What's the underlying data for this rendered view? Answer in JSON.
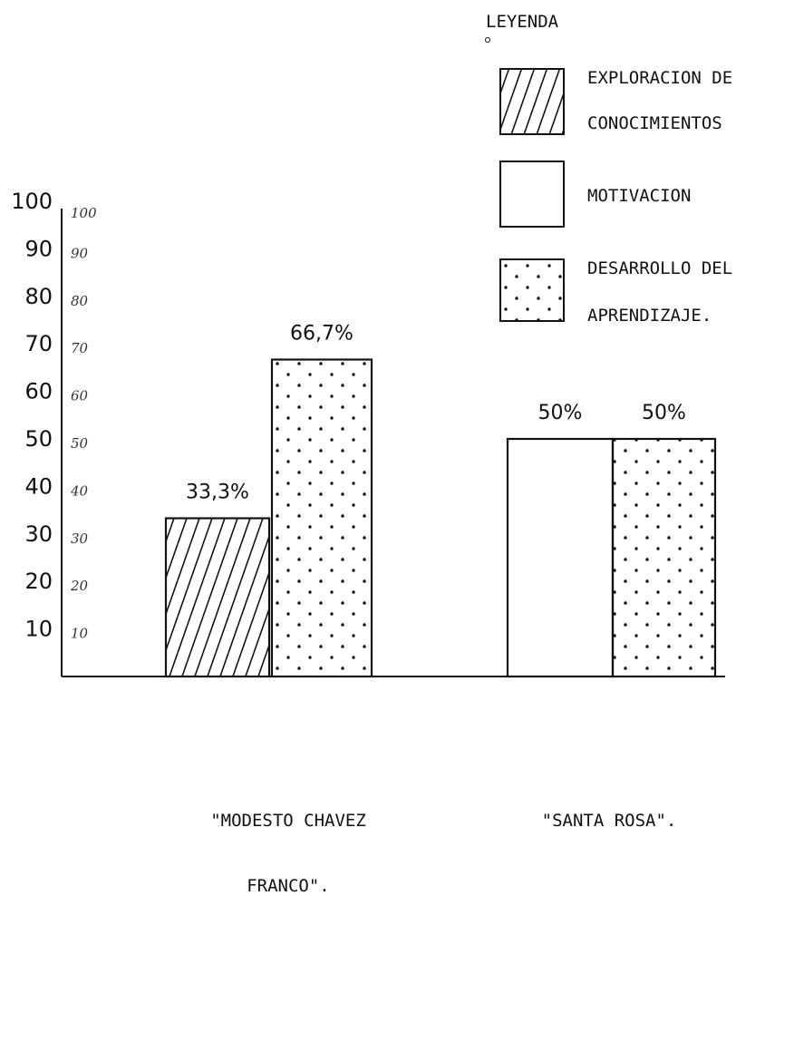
{
  "chart_data": {
    "type": "bar",
    "title": "",
    "xlabel": "",
    "ylabel": "",
    "ylim": [
      0,
      100
    ],
    "yticks": [
      10,
      20,
      30,
      40,
      50,
      60,
      70,
      80,
      90,
      100
    ],
    "ytick_labels": [
      "10",
      "20",
      "30",
      "40",
      "50",
      "60",
      "70",
      "80",
      "90",
      "100"
    ],
    "handwritten_ticks": [
      "10",
      "20",
      "30",
      "40",
      "50",
      "60",
      "70",
      "80",
      "90",
      "100"
    ],
    "grid": false,
    "legend": {
      "title": "LEYENDA",
      "placement": "top-right",
      "entries": [
        {
          "series": "exploracion",
          "lines": [
            "EXPLORACION DE",
            "CONOCIMIENTOS"
          ],
          "pattern": "hatch"
        },
        {
          "series": "motivacion",
          "lines": [
            "MOTIVACION"
          ],
          "pattern": "blank"
        },
        {
          "series": "desarrollo",
          "lines": [
            "DESARROLLO DEL",
            "APRENDIZAJE."
          ],
          "pattern": "dots"
        }
      ]
    },
    "categories": [
      {
        "lines": [
          "\"MODESTO CHAVEZ",
          "FRANCO\"."
        ]
      },
      {
        "lines": [
          "\"SANTA ROSA\"."
        ]
      }
    ],
    "bars": [
      {
        "category": 0,
        "series": "exploracion",
        "value": 33.3,
        "label": "33,3%",
        "pattern": "hatch"
      },
      {
        "category": 0,
        "series": "desarrollo",
        "value": 66.7,
        "label": "66,7%",
        "pattern": "dots"
      },
      {
        "category": 1,
        "series": "motivacion",
        "value": 50,
        "label": "50%",
        "pattern": "blank"
      },
      {
        "category": 1,
        "series": "desarrollo",
        "value": 50,
        "label": "50%",
        "pattern": "dots"
      }
    ]
  }
}
